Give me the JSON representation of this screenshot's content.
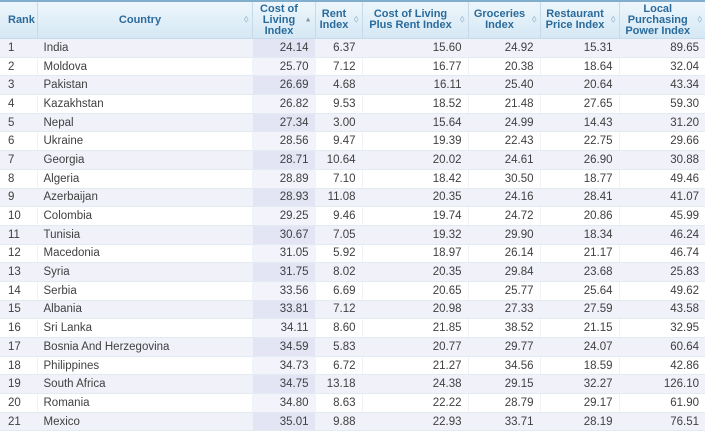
{
  "table": {
    "columns": [
      {
        "id": "rank",
        "label": "Rank",
        "sortable": false,
        "sort": "none",
        "align": "left",
        "highlight": false
      },
      {
        "id": "country",
        "label": "Country",
        "sortable": true,
        "sort": "none",
        "align": "left",
        "highlight": false
      },
      {
        "id": "col_index",
        "label": "Cost of\nLiving\nIndex",
        "sortable": true,
        "sort": "asc",
        "align": "right",
        "highlight": true
      },
      {
        "id": "rent_index",
        "label": "Rent\nIndex",
        "sortable": true,
        "sort": "none",
        "align": "right",
        "highlight": false
      },
      {
        "id": "col_plus_rent",
        "label": "Cost of Living\nPlus Rent Index",
        "sortable": true,
        "sort": "none",
        "align": "right",
        "highlight": false
      },
      {
        "id": "groceries",
        "label": "Groceries\nIndex",
        "sortable": true,
        "sort": "none",
        "align": "right",
        "highlight": false
      },
      {
        "id": "restaurant",
        "label": "Restaurant\nPrice Index",
        "sortable": true,
        "sort": "none",
        "align": "right",
        "highlight": false
      },
      {
        "id": "purchasing",
        "label": "Local\nPurchasing\nPower Index",
        "sortable": true,
        "sort": "none",
        "align": "right",
        "highlight": false
      }
    ],
    "rows": [
      [
        "1",
        "India",
        "24.14",
        "6.37",
        "15.60",
        "24.92",
        "15.31",
        "89.65"
      ],
      [
        "2",
        "Moldova",
        "25.70",
        "7.12",
        "16.77",
        "20.38",
        "18.64",
        "32.04"
      ],
      [
        "3",
        "Pakistan",
        "26.69",
        "4.68",
        "16.11",
        "25.40",
        "20.64",
        "43.34"
      ],
      [
        "4",
        "Kazakhstan",
        "26.82",
        "9.53",
        "18.52",
        "21.48",
        "27.65",
        "59.30"
      ],
      [
        "5",
        "Nepal",
        "27.34",
        "3.00",
        "15.64",
        "24.99",
        "14.43",
        "31.20"
      ],
      [
        "6",
        "Ukraine",
        "28.56",
        "9.47",
        "19.39",
        "22.43",
        "22.75",
        "29.66"
      ],
      [
        "7",
        "Georgia",
        "28.71",
        "10.64",
        "20.02",
        "24.61",
        "26.90",
        "30.88"
      ],
      [
        "8",
        "Algeria",
        "28.89",
        "7.10",
        "18.42",
        "30.50",
        "18.77",
        "49.46"
      ],
      [
        "9",
        "Azerbaijan",
        "28.93",
        "11.08",
        "20.35",
        "24.16",
        "28.41",
        "41.07"
      ],
      [
        "10",
        "Colombia",
        "29.25",
        "9.46",
        "19.74",
        "24.72",
        "20.86",
        "45.99"
      ],
      [
        "11",
        "Tunisia",
        "30.67",
        "7.05",
        "19.32",
        "29.90",
        "18.34",
        "46.24"
      ],
      [
        "12",
        "Macedonia",
        "31.05",
        "5.92",
        "18.97",
        "26.14",
        "21.17",
        "46.74"
      ],
      [
        "13",
        "Syria",
        "31.75",
        "8.02",
        "20.35",
        "29.84",
        "23.68",
        "25.83"
      ],
      [
        "14",
        "Serbia",
        "33.56",
        "6.69",
        "20.65",
        "25.77",
        "25.64",
        "49.62"
      ],
      [
        "15",
        "Albania",
        "33.81",
        "7.12",
        "20.98",
        "27.33",
        "27.59",
        "43.58"
      ],
      [
        "16",
        "Sri Lanka",
        "34.11",
        "8.60",
        "21.85",
        "38.52",
        "21.15",
        "32.95"
      ],
      [
        "17",
        "Bosnia And Herzegovina",
        "34.59",
        "5.83",
        "20.77",
        "29.77",
        "24.07",
        "60.64"
      ],
      [
        "18",
        "Philippines",
        "34.73",
        "6.72",
        "21.27",
        "34.56",
        "18.59",
        "42.86"
      ],
      [
        "19",
        "South Africa",
        "34.75",
        "13.18",
        "24.38",
        "29.15",
        "32.27",
        "126.10"
      ],
      [
        "20",
        "Romania",
        "34.80",
        "8.63",
        "22.22",
        "28.79",
        "29.17",
        "61.90"
      ],
      [
        "21",
        "Mexico",
        "35.01",
        "9.88",
        "22.93",
        "33.71",
        "28.19",
        "76.51"
      ]
    ]
  },
  "icons": {
    "sort_both": "◊",
    "sort_asc": "▲"
  },
  "colors": {
    "header_text": "#2a6b9c",
    "header_bg_top": "#eef6fc",
    "header_bg_bottom": "#d5e8f4",
    "table_top_border": "#82aecd",
    "row_odd_bg": "#f0f1f9",
    "row_even_bg": "#ffffff",
    "sorted_col_odd_bg": "#e3e5f4",
    "sorted_col_even_bg": "#f3f4fb",
    "body_text": "#404040"
  }
}
